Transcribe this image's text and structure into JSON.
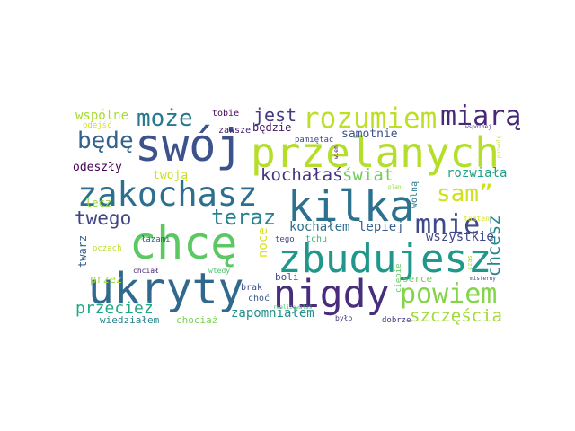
{
  "words": [
    {
      "text": "chcę",
      "color": "#5cc863"
    },
    {
      "text": "swój",
      "color": "#3b528b"
    },
    {
      "text": "przelanych",
      "color": "#b5de2b"
    },
    {
      "text": "kilka",
      "color": "#2c728e"
    },
    {
      "text": "zbudujesz",
      "color": "#1f988b"
    },
    {
      "text": "ukryty",
      "color": "#31688e"
    },
    {
      "text": "nigdy",
      "color": "#472d7b"
    },
    {
      "text": "zakochasz",
      "color": "#2d6f8e"
    },
    {
      "text": "rozumiem",
      "color": "#bddf26"
    },
    {
      "text": "powiem",
      "color": "#84d44b"
    },
    {
      "text": "miarą",
      "color": "#482878"
    },
    {
      "text": "sam”",
      "color": "#d0e11c"
    },
    {
      "text": "mnie",
      "color": "#3e4989"
    },
    {
      "text": "może",
      "color": "#2a788e"
    },
    {
      "text": "będę",
      "color": "#33638d"
    },
    {
      "text": "teraz",
      "color": "#26828e"
    },
    {
      "text": "twego",
      "color": "#414487"
    },
    {
      "text": "jest",
      "color": "#443983"
    },
    {
      "text": "kochałaś",
      "color": "#46337f"
    },
    {
      "text": "świat",
      "color": "#6ece58"
    },
    {
      "text": "szczęścia",
      "color": "#a0da39"
    },
    {
      "text": "chcesz",
      "color": "#24868e"
    },
    {
      "text": "przecież",
      "color": "#22a884"
    },
    {
      "text": "wspólne",
      "color": "#a8db34"
    },
    {
      "text": "samotnie",
      "color": "#3b528b"
    },
    {
      "text": "zapomniałem",
      "color": "#21918c"
    },
    {
      "text": "rozwiała",
      "color": "#1fa188"
    },
    {
      "text": "kochałem",
      "color": "#2e6e8e"
    },
    {
      "text": "lepiej",
      "color": "#355f8d"
    },
    {
      "text": "wszystkie",
      "color": "#3f4788"
    },
    {
      "text": "noce",
      "color": "#d8e219"
    },
    {
      "text": "odeszły",
      "color": "#440154"
    },
    {
      "text": "twoją",
      "color": "#c8e020"
    },
    {
      "text": "lecz",
      "color": "#93d741"
    },
    {
      "text": "będzie",
      "color": "#481668"
    },
    {
      "text": "tobie",
      "color": "#46085c"
    },
    {
      "text": "przez",
      "color": "#a5db36"
    },
    {
      "text": "twarz",
      "color": "#34618d"
    },
    {
      "text": "wiedziałem",
      "color": "#25858e"
    },
    {
      "text": "chociaż",
      "color": "#7ad151"
    },
    {
      "text": "boli",
      "color": "#3a548c"
    },
    {
      "text": "serce",
      "color": "#6ccd5a"
    },
    {
      "text": "wolną",
      "color": "#297b8e"
    },
    {
      "text": "zawsze",
      "color": "#482173"
    },
    {
      "text": "tchu",
      "color": "#35b779"
    },
    {
      "text": "brak",
      "color": "#3e4c8a"
    },
    {
      "text": "choć",
      "color": "#39568c"
    },
    {
      "text": "odejść",
      "color": "#d2e21b"
    },
    {
      "text": "pamiętać",
      "color": "#404588"
    },
    {
      "text": "łazami",
      "color": "#365d8d"
    },
    {
      "text": "oczach",
      "color": "#bade28"
    },
    {
      "text": "tego",
      "color": "#3f4889"
    },
    {
      "text": "dobrze",
      "color": "#443983"
    },
    {
      "text": "było",
      "color": "#453781"
    },
    {
      "text": "ciebie",
      "color": "#63cb5f"
    },
    {
      "text": "chciał",
      "color": "#482677"
    },
    {
      "text": "wtedy",
      "color": "#4ac16d"
    },
    {
      "text": "realizowałaś",
      "color": "#46c06f"
    },
    {
      "text": "misterny",
      "color": "#3e4a89"
    },
    {
      "text": "tamten",
      "color": "#d2e21b"
    },
    {
      "text": "wspólnej",
      "color": "#453882"
    },
    {
      "text": "plan",
      "color": "#98d83e"
    },
    {
      "text": "czas",
      "color": "#addc30"
    },
    {
      "text": "pozwolę",
      "color": "#d5e21a"
    },
    {
      "text": "wiem",
      "color": "#440154"
    }
  ]
}
